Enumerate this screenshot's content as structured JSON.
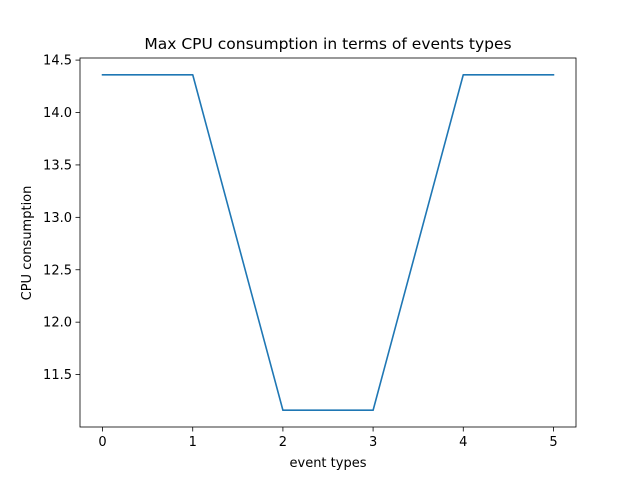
{
  "chart_data": {
    "type": "line",
    "title": "Max CPU consumption in terms of events types",
    "xlabel": "event types",
    "ylabel": "CPU consumption",
    "x": [
      0,
      1,
      2,
      3,
      4,
      5
    ],
    "series": [
      {
        "values": [
          14.36,
          14.36,
          11.16,
          11.16,
          14.36,
          14.36
        ],
        "color": "#1f77b4"
      }
    ],
    "xlim": [
      -0.25,
      5.25
    ],
    "ylim": [
      11.0,
      14.52
    ],
    "xticks": [
      0,
      1,
      2,
      3,
      4,
      5
    ],
    "xtick_labels": [
      "0",
      "1",
      "2",
      "3",
      "4",
      "5"
    ],
    "yticks": [
      11.5,
      12.0,
      12.5,
      13.0,
      13.5,
      14.0,
      14.5
    ],
    "ytick_labels": [
      "11.5",
      "12.0",
      "12.5",
      "13.0",
      "13.5",
      "14.0",
      "14.5"
    ],
    "grid": false,
    "legend": "none"
  }
}
